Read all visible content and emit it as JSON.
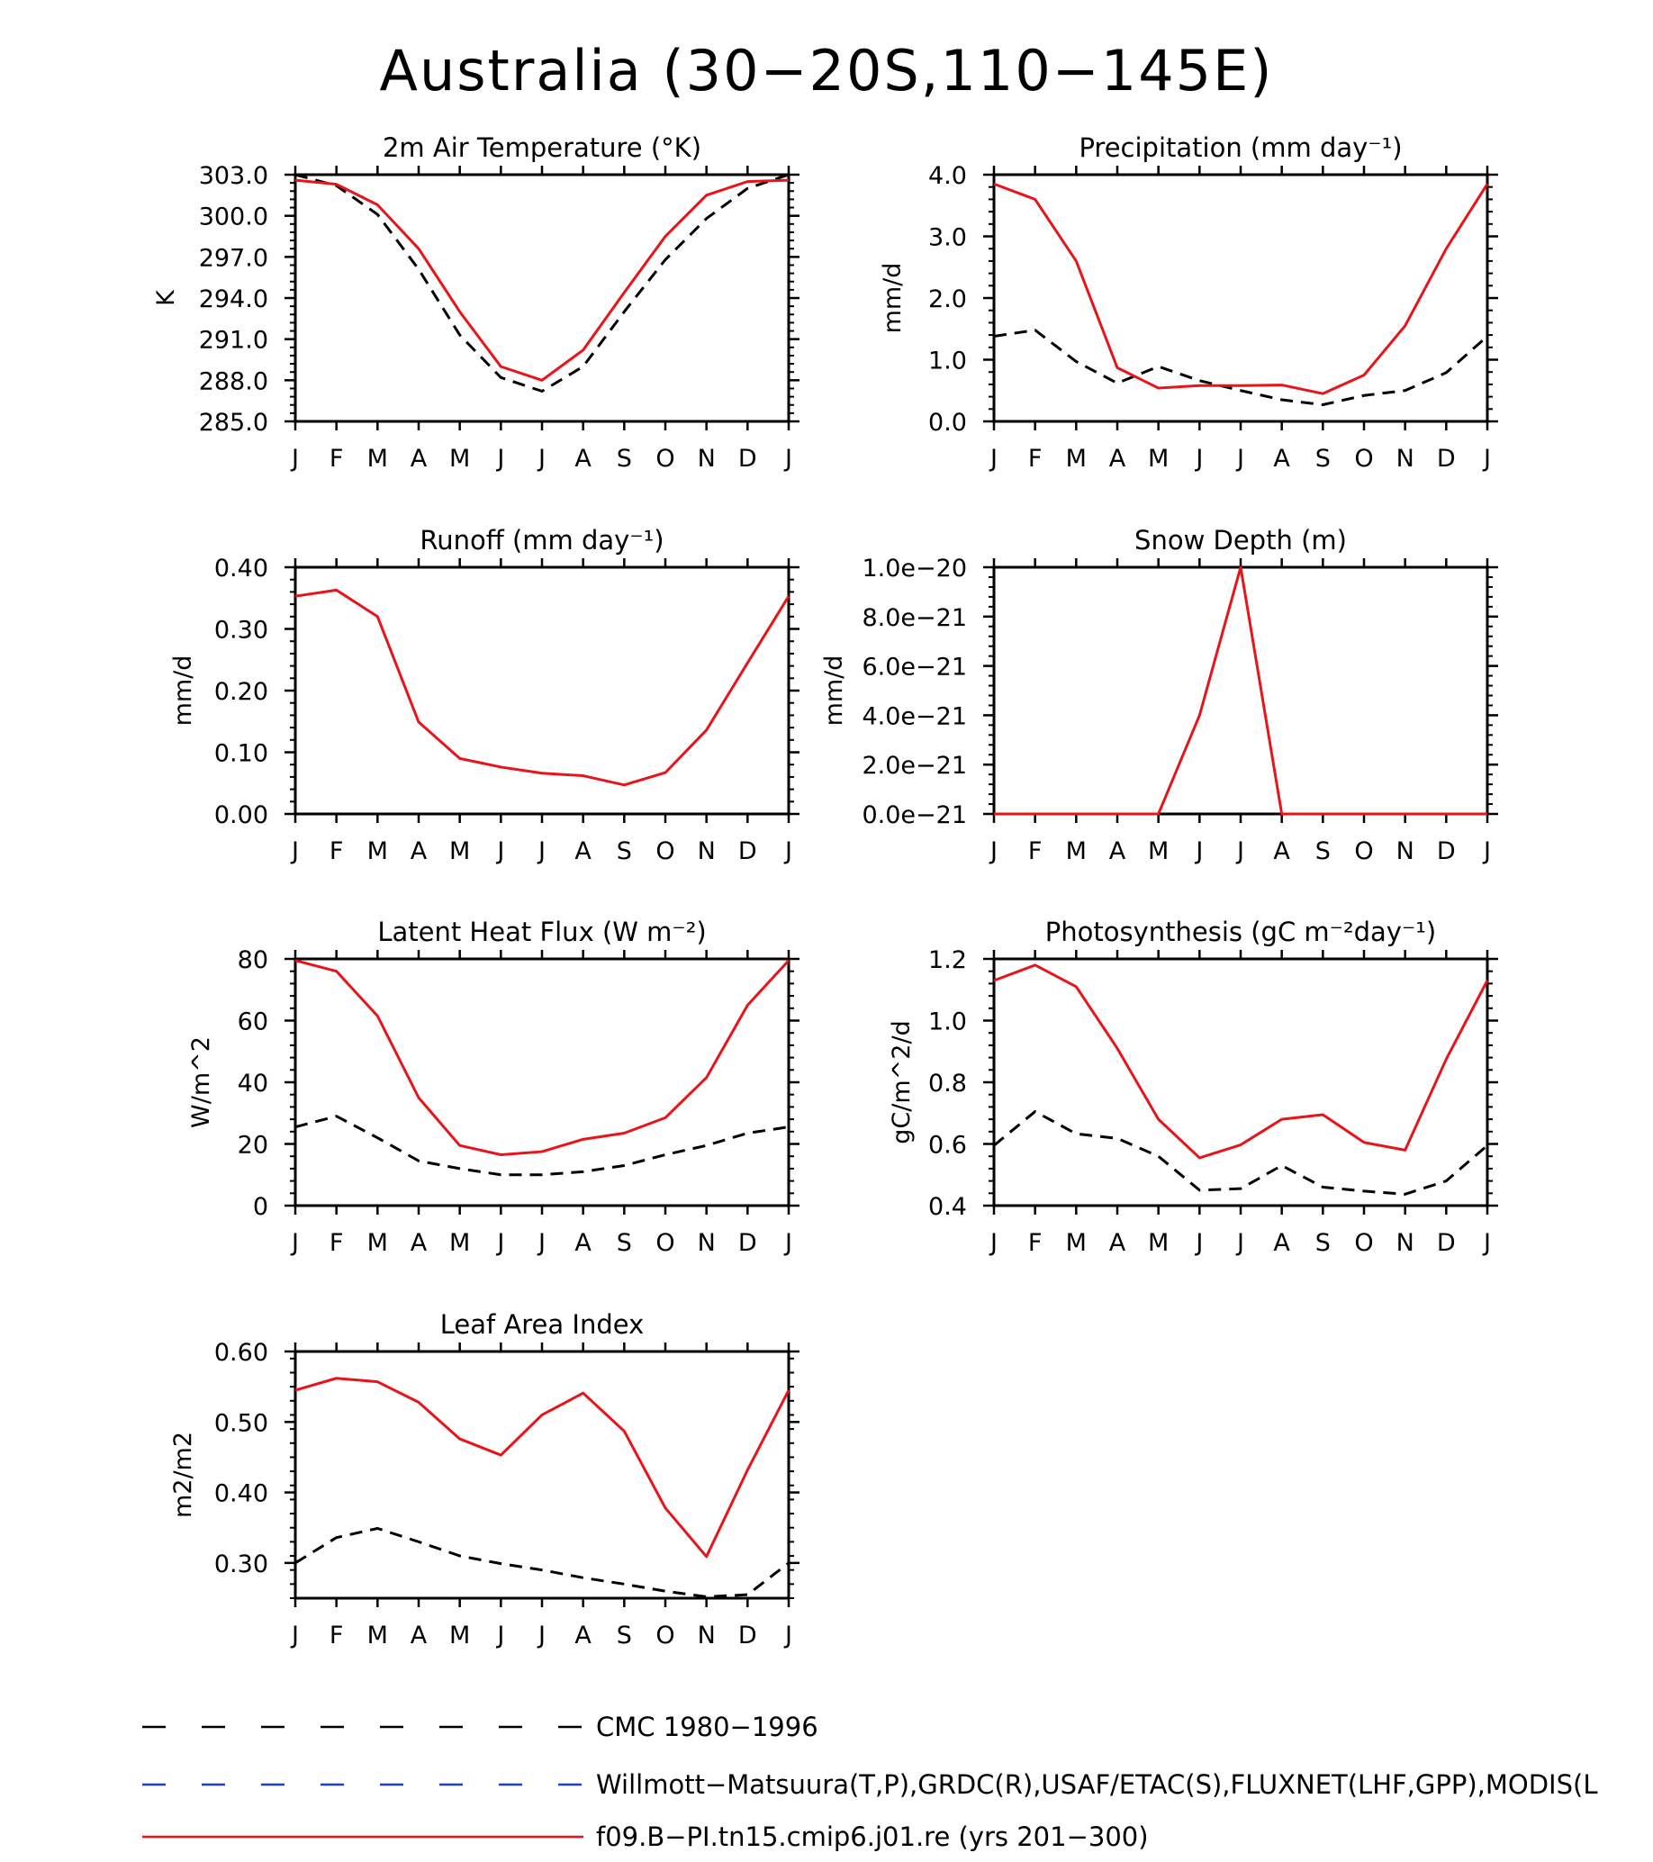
{
  "title": "Australia (30−20S,110−145E)",
  "months": [
    "J",
    "F",
    "M",
    "A",
    "M",
    "J",
    "J",
    "A",
    "S",
    "O",
    "N",
    "D",
    "J"
  ],
  "colors": {
    "obs": "#000000",
    "model": "#e8141a",
    "obs2": "#1f3fd6"
  },
  "legend": [
    {
      "key": "obs",
      "label": "CMC 1980−1996",
      "style": "dashed"
    },
    {
      "key": "obs2",
      "label": "Willmott−Matsuura(T,P),GRDC(R),USAF/ETAC(S),FLUXNET(LHF,GPP),MODIS(L",
      "style": "dashed"
    },
    {
      "key": "model",
      "label": "f09.B−PI.tn15.cmip6.j01.re (yrs 201−300)",
      "style": "solid"
    }
  ],
  "chart_data": [
    {
      "type": "line",
      "title": "2m Air Temperature (°K)",
      "ylabel": "K",
      "ylim": [
        285,
        303
      ],
      "yticks": [
        "285.0",
        "288.0",
        "291.0",
        "294.0",
        "297.0",
        "300.0",
        "303.0"
      ],
      "yticks_values": [
        285,
        288,
        291,
        294,
        297,
        300,
        303
      ],
      "series": [
        {
          "key": "model",
          "values": [
            302.6,
            302.3,
            300.8,
            297.6,
            293.0,
            289.0,
            288.0,
            290.2,
            294.4,
            298.5,
            301.5,
            302.5,
            302.6
          ]
        },
        {
          "key": "obs",
          "values": [
            303.0,
            302.2,
            300.1,
            296.1,
            291.3,
            288.2,
            287.2,
            289.0,
            293.0,
            296.8,
            299.8,
            302.0,
            303.0
          ]
        }
      ]
    },
    {
      "type": "line",
      "title": "Precipitation (mm day⁻¹)",
      "ylabel": "mm/d",
      "ylim": [
        0,
        4
      ],
      "yticks": [
        "0.0",
        "1.0",
        "2.0",
        "3.0",
        "4.0"
      ],
      "yticks_values": [
        0,
        1,
        2,
        3,
        4
      ],
      "series": [
        {
          "key": "model",
          "values": [
            3.85,
            3.6,
            2.6,
            0.87,
            0.54,
            0.58,
            0.58,
            0.59,
            0.45,
            0.75,
            1.55,
            2.8,
            3.85
          ]
        },
        {
          "key": "obs",
          "values": [
            1.38,
            1.48,
            0.97,
            0.62,
            0.89,
            0.66,
            0.5,
            0.35,
            0.27,
            0.42,
            0.5,
            0.79,
            1.38
          ]
        }
      ]
    },
    {
      "type": "line",
      "title": "Runoff (mm day⁻¹)",
      "ylabel": "mm/d",
      "ylim": [
        0,
        0.4
      ],
      "yticks": [
        "0.00",
        "0.10",
        "0.20",
        "0.30",
        "0.40"
      ],
      "yticks_values": [
        0,
        0.1,
        0.2,
        0.3,
        0.4
      ],
      "series": [
        {
          "key": "model",
          "values": [
            0.353,
            0.363,
            0.32,
            0.149,
            0.09,
            0.076,
            0.066,
            0.062,
            0.047,
            0.067,
            0.136,
            0.245,
            0.353
          ]
        },
        {
          "key": "obs",
          "values": [
            0,
            0,
            0,
            0,
            0,
            0,
            0,
            0,
            0,
            0,
            0,
            0,
            0
          ]
        }
      ]
    },
    {
      "type": "line",
      "title": "Snow Depth (m)",
      "ylabel": "mm/d",
      "ylim": [
        0,
        1e-20
      ],
      "yticks": [
        "0.0e−21",
        "2.0e−21",
        "4.0e−21",
        "6.0e−21",
        "8.0e−21",
        "1.0e−20"
      ],
      "yticks_values": [
        0,
        2e-21,
        4e-21,
        6e-21,
        8e-21,
        1e-20
      ],
      "series": [
        {
          "key": "model",
          "values": [
            0,
            0,
            0,
            0,
            0,
            4e-21,
            1e-20,
            0,
            0,
            0,
            0,
            0,
            0
          ]
        },
        {
          "key": "obs",
          "values": [
            0,
            0,
            0,
            0,
            0,
            0,
            0,
            0,
            0,
            0,
            0,
            0,
            0
          ]
        }
      ]
    },
    {
      "type": "line",
      "title": "Latent Heat Flux (W m⁻²)",
      "ylabel": "W/m^2",
      "ylim": [
        0,
        80
      ],
      "yticks": [
        "0",
        "20",
        "40",
        "60",
        "80"
      ],
      "yticks_values": [
        0,
        20,
        40,
        60,
        80
      ],
      "series": [
        {
          "key": "model",
          "values": [
            79.5,
            76.0,
            61.5,
            35.0,
            19.5,
            16.5,
            17.5,
            21.5,
            23.5,
            28.5,
            41.5,
            65.0,
            79.5
          ]
        },
        {
          "key": "obs",
          "values": [
            25.5,
            29.0,
            22.0,
            14.5,
            12.0,
            10.0,
            10.0,
            11.0,
            13.0,
            16.5,
            19.5,
            23.5,
            25.5
          ]
        }
      ]
    },
    {
      "type": "line",
      "title": "Photosynthesis (gC m⁻²day⁻¹)",
      "ylabel": "gC/m^2/d",
      "ylim": [
        0.4,
        1.2
      ],
      "yticks": [
        "0.4",
        "0.6",
        "0.8",
        "1.0",
        "1.2"
      ],
      "yticks_values": [
        0.4,
        0.6,
        0.8,
        1.0,
        1.2
      ],
      "series": [
        {
          "key": "model",
          "values": [
            1.13,
            1.18,
            1.11,
            0.91,
            0.68,
            0.555,
            0.597,
            0.68,
            0.695,
            0.605,
            0.58,
            0.875,
            1.13
          ]
        },
        {
          "key": "obs",
          "values": [
            0.595,
            0.705,
            0.633,
            0.618,
            0.56,
            0.45,
            0.455,
            0.53,
            0.46,
            0.447,
            0.437,
            0.48,
            0.595
          ]
        }
      ]
    },
    {
      "type": "line",
      "title": "Leaf Area Index",
      "ylabel": "m2/m2",
      "ylim": [
        0.25,
        0.6
      ],
      "yticks": [
        "0.30",
        "0.40",
        "0.50",
        "0.60"
      ],
      "yticks_values": [
        0.3,
        0.4,
        0.5,
        0.6
      ],
      "series": [
        {
          "key": "model",
          "values": [
            0.545,
            0.562,
            0.557,
            0.528,
            0.476,
            0.453,
            0.51,
            0.541,
            0.487,
            0.378,
            0.309,
            0.432,
            0.545
          ]
        },
        {
          "key": "obs",
          "values": [
            0.3,
            0.336,
            0.349,
            0.33,
            0.31,
            0.299,
            0.29,
            0.279,
            0.27,
            0.26,
            0.252,
            0.255,
            0.3
          ]
        }
      ]
    }
  ]
}
